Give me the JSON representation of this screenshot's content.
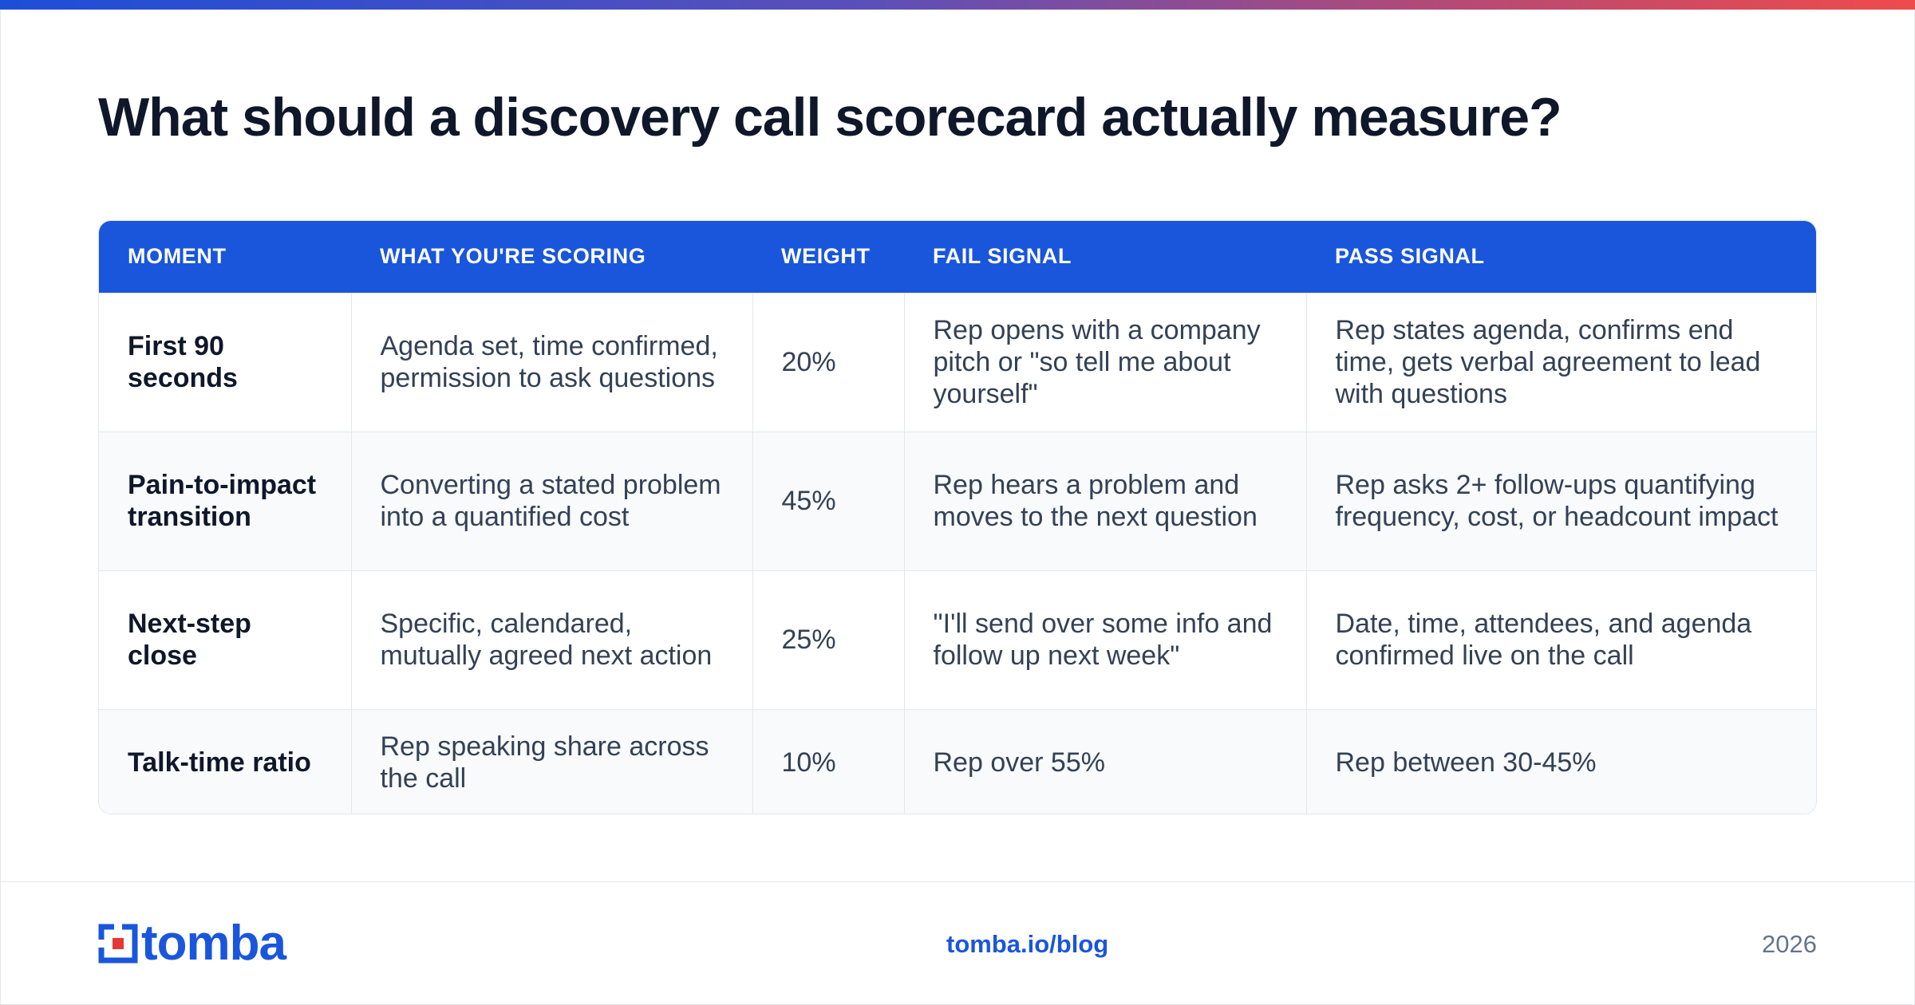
{
  "title": "What should a discovery call scorecard actually measure?",
  "table": {
    "headers": [
      "MOMENT",
      "WHAT YOU'RE SCORING",
      "WEIGHT",
      "FAIL SIGNAL",
      "PASS SIGNAL"
    ],
    "rows": [
      {
        "moment": "First 90 seconds",
        "scoring": "Agenda set, time confirmed, permission to ask questions",
        "weight": "20%",
        "fail": "Rep opens with a company pitch or \"so tell me about yourself\"",
        "pass": "Rep states agenda, confirms end time, gets verbal agreement to lead with questions"
      },
      {
        "moment": "Pain-to-impact transition",
        "scoring": "Converting a stated problem into a quantified cost",
        "weight": "45%",
        "fail": "Rep hears a problem and moves to the next question",
        "pass": "Rep asks 2+ follow-ups quantifying frequency, cost, or headcount impact"
      },
      {
        "moment": "Next-step close",
        "scoring": "Specific, calendared, mutually agreed next action",
        "weight": "25%",
        "fail": "\"I'll send over some info and follow up next week\"",
        "pass": "Date, time, attendees, and agenda confirmed live on the call"
      },
      {
        "moment": "Talk-time ratio",
        "scoring": "Rep speaking share across the call",
        "weight": "10%",
        "fail": "Rep over 55%",
        "pass": "Rep between 30-45%"
      }
    ]
  },
  "footer": {
    "logo_text": "tomba",
    "logo_icon": "tomba-logo-icon",
    "link": "tomba.io/blog",
    "year": "2026"
  },
  "colors": {
    "accent": "#1a56db",
    "logo_red": "#e53935",
    "heading": "#0f172a",
    "body_text": "#334155"
  }
}
